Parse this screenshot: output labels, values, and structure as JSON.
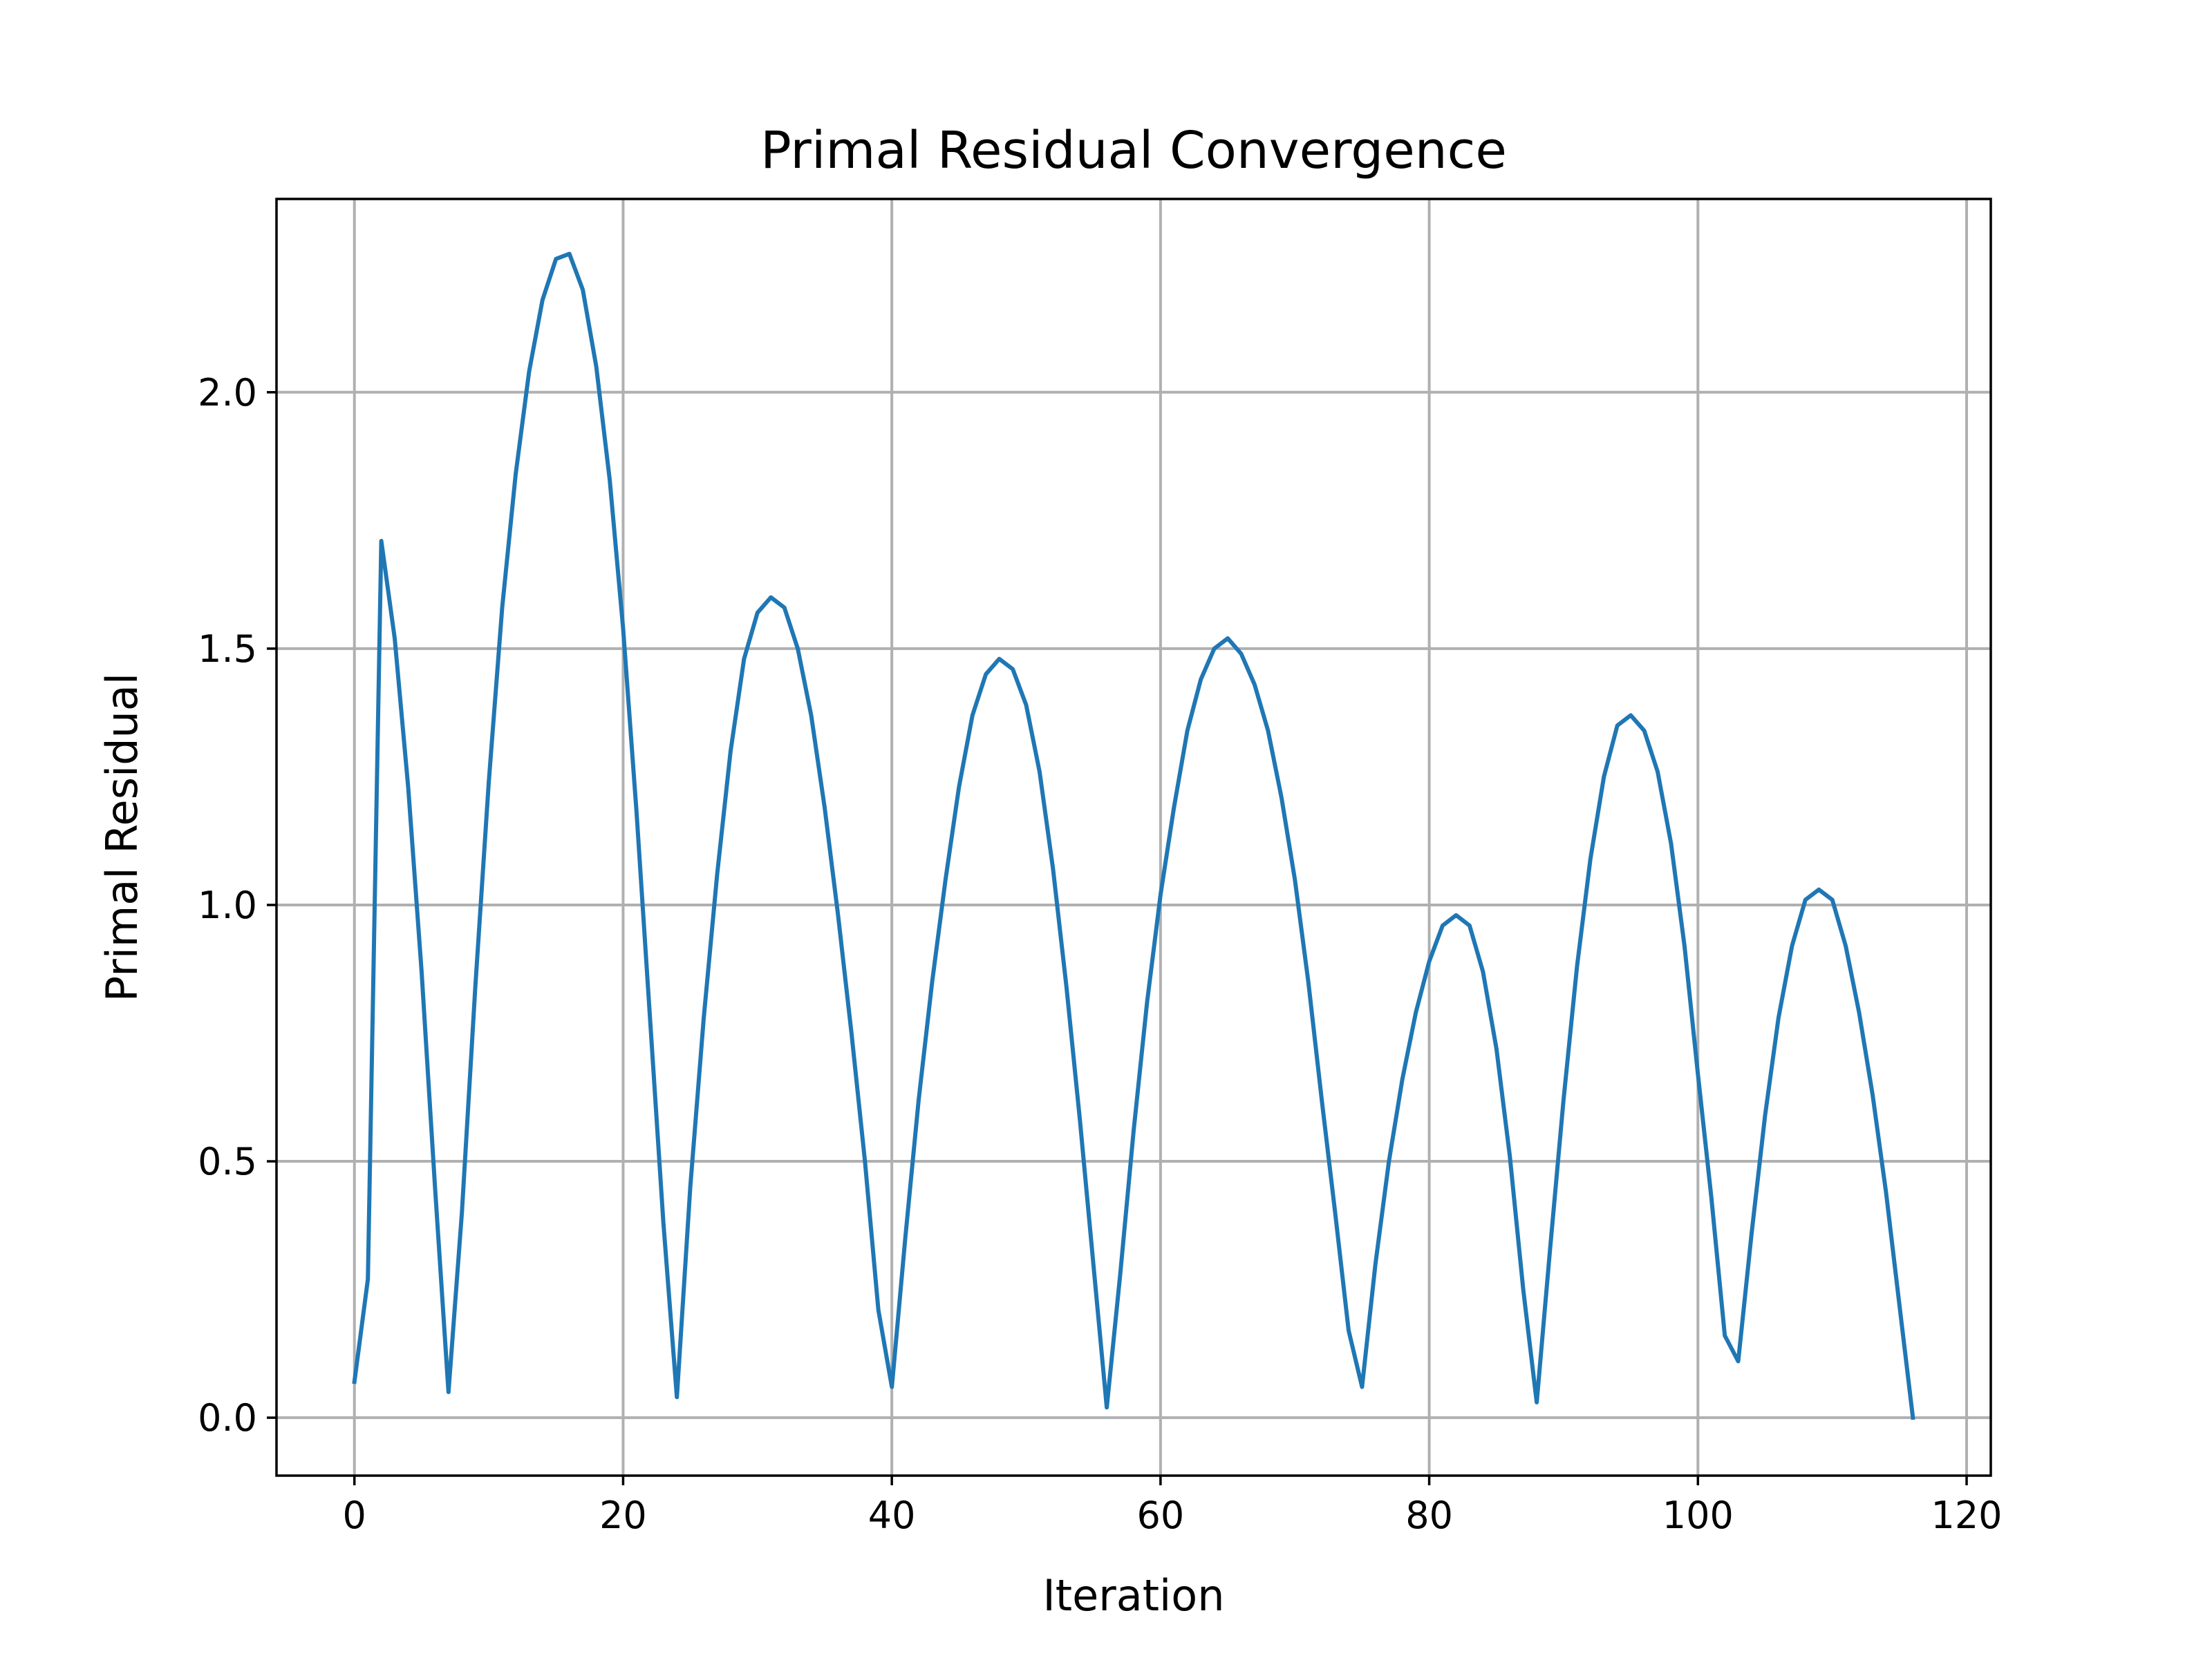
{
  "chart_data": {
    "type": "line",
    "title": "Primal Residual Convergence",
    "xlabel": "Iteration",
    "ylabel": "Primal Residual",
    "xlim": [
      -5.8,
      121.8
    ],
    "ylim": [
      -0.113,
      2.377
    ],
    "xticks": [
      0,
      20,
      40,
      60,
      80,
      100,
      120
    ],
    "yticks": [
      0.0,
      0.5,
      1.0,
      1.5,
      2.0
    ],
    "xtick_labels": [
      "0",
      "20",
      "40",
      "60",
      "80",
      "100",
      "120"
    ],
    "ytick_labels": [
      "0.0",
      "0.5",
      "1.0",
      "1.5",
      "2.0"
    ],
    "grid": true,
    "line_color": "#1f77b4",
    "series": [
      {
        "x": [
          0,
          1,
          2,
          3,
          4,
          5,
          6,
          7,
          8,
          9,
          10,
          11,
          12,
          13,
          14,
          15,
          16,
          17,
          18,
          19,
          20,
          21,
          22,
          23,
          24,
          25,
          26,
          27,
          28,
          29,
          30,
          31,
          32,
          33,
          34,
          35,
          36,
          37,
          38,
          39,
          40,
          41,
          42,
          43,
          44,
          45,
          46,
          47,
          48,
          49,
          50,
          51,
          52,
          53,
          54,
          55,
          56,
          57,
          58,
          59,
          60,
          61,
          62,
          63,
          64,
          65,
          66,
          67,
          68,
          69,
          70,
          71,
          72,
          73,
          74,
          75,
          76,
          77,
          78,
          79,
          80,
          81,
          82,
          83,
          84,
          85,
          86,
          87,
          88,
          89,
          90,
          91,
          92,
          93,
          94,
          95,
          96,
          97,
          98,
          99,
          100,
          101,
          102,
          103,
          104,
          105,
          106,
          107,
          108,
          109,
          110,
          111,
          112,
          113,
          114,
          115,
          116
        ],
        "values": [
          0.07,
          0.27,
          1.71,
          1.52,
          1.23,
          0.87,
          0.45,
          0.05,
          0.4,
          0.84,
          1.24,
          1.58,
          1.84,
          2.04,
          2.18,
          2.26,
          2.27,
          2.2,
          2.05,
          1.83,
          1.54,
          1.18,
          0.78,
          0.38,
          0.04,
          0.45,
          0.78,
          1.06,
          1.3,
          1.48,
          1.57,
          1.6,
          1.58,
          1.5,
          1.37,
          1.19,
          0.98,
          0.75,
          0.5,
          0.21,
          0.06,
          0.35,
          0.62,
          0.85,
          1.05,
          1.23,
          1.37,
          1.45,
          1.48,
          1.46,
          1.39,
          1.26,
          1.07,
          0.84,
          0.58,
          0.3,
          0.02,
          0.28,
          0.56,
          0.81,
          1.02,
          1.19,
          1.34,
          1.44,
          1.5,
          1.52,
          1.49,
          1.43,
          1.34,
          1.21,
          1.05,
          0.85,
          0.62,
          0.4,
          0.17,
          0.06,
          0.3,
          0.5,
          0.66,
          0.79,
          0.89,
          0.96,
          0.98,
          0.96,
          0.87,
          0.72,
          0.51,
          0.25,
          0.03,
          0.33,
          0.62,
          0.88,
          1.09,
          1.25,
          1.35,
          1.37,
          1.34,
          1.26,
          1.12,
          0.92,
          0.67,
          0.43,
          0.16,
          0.11,
          0.36,
          0.59,
          0.78,
          0.92,
          1.01,
          1.03,
          1.01,
          0.92,
          0.79,
          0.63,
          0.44,
          0.22,
          0.0
        ]
      }
    ]
  }
}
